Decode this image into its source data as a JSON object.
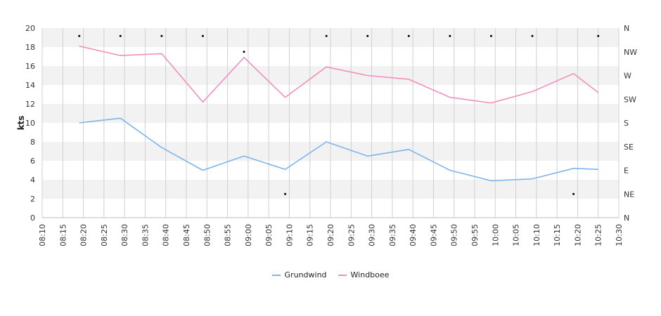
{
  "chart_data": {
    "type": "line",
    "ylabel": "kts",
    "ylim": [
      0,
      20
    ],
    "yticks": [
      "0",
      "2",
      "4",
      "6",
      "8",
      "10",
      "12",
      "14",
      "16",
      "18",
      "20"
    ],
    "xticks": [
      "08:10",
      "08:15",
      "08:20",
      "08:25",
      "08:30",
      "08:35",
      "08:40",
      "08:45",
      "08:50",
      "08:55",
      "09:00",
      "09:05",
      "09:10",
      "09:15",
      "09:20",
      "09:25",
      "09:30",
      "09:35",
      "09:40",
      "09:45",
      "09:50",
      "09:55",
      "10:00",
      "10:05",
      "10:10",
      "10:15",
      "10:20",
      "10:25",
      "10:30"
    ],
    "xlim": [
      "08:10",
      "10:30"
    ],
    "right_axis": {
      "labels": [
        "N",
        "NE",
        "E",
        "SE",
        "S",
        "SW",
        "W",
        "NW",
        "N"
      ],
      "range_degrees": [
        0,
        360
      ]
    },
    "grid": true,
    "legend_position": "bottom",
    "series": [
      {
        "name": "Grundwind",
        "color": "#7cb5ec",
        "x": [
          "08:19",
          "08:29",
          "08:39",
          "08:49",
          "08:59",
          "09:09",
          "09:19",
          "09:29",
          "09:39",
          "09:49",
          "09:59",
          "10:09",
          "10:19",
          "10:25"
        ],
        "values": [
          10.0,
          10.5,
          7.4,
          5.0,
          6.5,
          5.1,
          8.0,
          6.5,
          7.2,
          5.0,
          3.9,
          4.1,
          5.2,
          5.1
        ]
      },
      {
        "name": "Windboee",
        "color": "#f28fbf",
        "x": [
          "08:19",
          "08:29",
          "08:39",
          "08:49",
          "08:59",
          "09:09",
          "09:19",
          "09:29",
          "09:39",
          "09:49",
          "09:59",
          "10:09",
          "10:19",
          "10:25"
        ],
        "values": [
          18.1,
          17.1,
          17.3,
          12.2,
          16.9,
          12.7,
          15.9,
          15.0,
          14.6,
          12.7,
          12.1,
          13.3,
          15.2,
          13.2
        ]
      }
    ],
    "direction_markers": {
      "x": [
        "08:19",
        "08:29",
        "08:39",
        "08:49",
        "08:59",
        "09:09",
        "09:19",
        "09:29",
        "09:39",
        "09:49",
        "09:59",
        "10:09",
        "10:19",
        "10:25"
      ],
      "degrees": [
        345,
        345,
        345,
        345,
        315,
        45,
        345,
        345,
        345,
        345,
        345,
        345,
        45,
        345
      ]
    }
  }
}
